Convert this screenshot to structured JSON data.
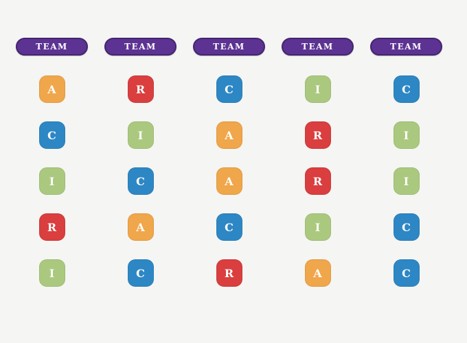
{
  "page": {
    "background": "#F5F5F3"
  },
  "header_style": {
    "fill": "#5C3392",
    "border": "#44256F",
    "text_color": "#FFFFFF"
  },
  "role_colors": {
    "A": "#F0A64A",
    "R": "#DA3E3E",
    "C": "#2D87C4",
    "I": "#AAC97E"
  },
  "badge_text_color": "#FFFFFF",
  "columns": [
    {
      "header": "TEAM",
      "cells": [
        "A",
        "C",
        "I",
        "R",
        "I"
      ]
    },
    {
      "header": "TEAM",
      "cells": [
        "R",
        "I",
        "C",
        "A",
        "C"
      ]
    },
    {
      "header": "TEAM",
      "cells": [
        "C",
        "A",
        "A",
        "C",
        "R"
      ]
    },
    {
      "header": "TEAM",
      "cells": [
        "I",
        "R",
        "R",
        "I",
        "A"
      ]
    },
    {
      "header": "TEAM",
      "cells": [
        "C",
        "I",
        "I",
        "C",
        "C"
      ]
    }
  ],
  "grid_rows": [
    [
      "A",
      "R",
      "C",
      "I",
      "C"
    ],
    [
      "C",
      "I",
      "A",
      "R",
      "I"
    ],
    [
      "I",
      "C",
      "A",
      "R",
      "I"
    ],
    [
      "R",
      "A",
      "C",
      "I",
      "C"
    ],
    [
      "I",
      "C",
      "R",
      "A",
      "C"
    ]
  ]
}
